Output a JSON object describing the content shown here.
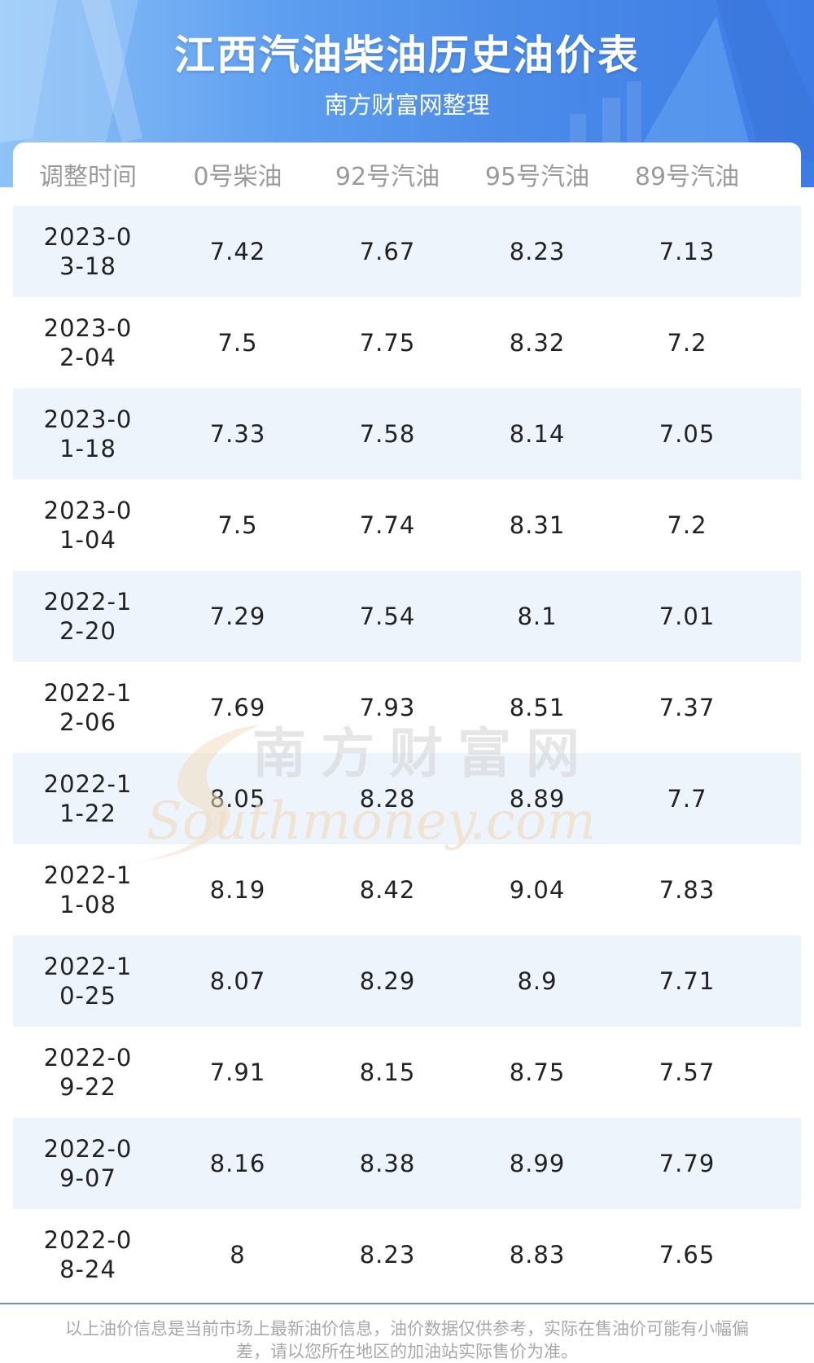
{
  "header": {
    "title": "江西汽油柴油历史油价表",
    "subtitle": "南方财富网整理"
  },
  "table": {
    "columns": [
      "调整时间",
      "0号柴油",
      "92号汽油",
      "95号汽油",
      "89号汽油"
    ],
    "rows": [
      {
        "date": "2023-03-18",
        "d0": "7.42",
        "g92": "7.67",
        "g95": "8.23",
        "g89": "7.13"
      },
      {
        "date": "2023-02-04",
        "d0": "7.5",
        "g92": "7.75",
        "g95": "8.32",
        "g89": "7.2"
      },
      {
        "date": "2023-01-18",
        "d0": "7.33",
        "g92": "7.58",
        "g95": "8.14",
        "g89": "7.05"
      },
      {
        "date": "2023-01-04",
        "d0": "7.5",
        "g92": "7.74",
        "g95": "8.31",
        "g89": "7.2"
      },
      {
        "date": "2022-12-20",
        "d0": "7.29",
        "g92": "7.54",
        "g95": "8.1",
        "g89": "7.01"
      },
      {
        "date": "2022-12-06",
        "d0": "7.69",
        "g92": "7.93",
        "g95": "8.51",
        "g89": "7.37"
      },
      {
        "date": "2022-11-22",
        "d0": "8.05",
        "g92": "8.28",
        "g95": "8.89",
        "g89": "7.7"
      },
      {
        "date": "2022-11-08",
        "d0": "8.19",
        "g92": "8.42",
        "g95": "9.04",
        "g89": "7.83"
      },
      {
        "date": "2022-10-25",
        "d0": "8.07",
        "g92": "8.29",
        "g95": "8.9",
        "g89": "7.71"
      },
      {
        "date": "2022-09-22",
        "d0": "7.91",
        "g92": "8.15",
        "g95": "8.75",
        "g89": "7.57"
      },
      {
        "date": "2022-09-07",
        "d0": "8.16",
        "g92": "8.38",
        "g95": "8.99",
        "g89": "7.79"
      },
      {
        "date": "2022-08-24",
        "d0": "8",
        "g92": "8.23",
        "g95": "8.83",
        "g89": "7.65"
      }
    ]
  },
  "watermark": {
    "cn": "南方财富网",
    "en": "Southmoney.com"
  },
  "footer": {
    "note": "以上油价信息是当前市场上最新油价信息，油价数据仅供参考，实际在售油价可能有小幅偏差，请以您所在地区的加油站实际售价为准。"
  },
  "colors": {
    "header_left": "#8fc3f7",
    "header_right": "#3d7ce5",
    "row_alt": "#eef4fc",
    "divider": "#6b93c8"
  }
}
